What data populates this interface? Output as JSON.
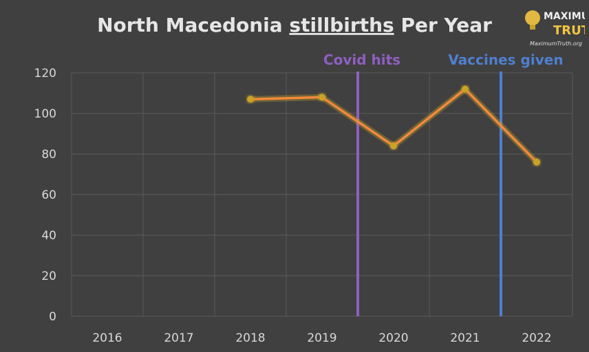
{
  "chart_data": {
    "type": "line",
    "title_parts": [
      "North Macedonia ",
      "stillbirths",
      " Per Year"
    ],
    "categories": [
      "2016",
      "2017",
      "2018",
      "2019",
      "2020",
      "2021",
      "2022"
    ],
    "series": [
      {
        "values": [
          null,
          null,
          107,
          108,
          84,
          112,
          76
        ]
      }
    ],
    "ylim": [
      0,
      120
    ],
    "yticks": [
      0,
      20,
      40,
      60,
      80,
      100,
      120
    ],
    "grid": true,
    "line_color": "#f28a3c",
    "marker_color": "#c9a227",
    "annotations": [
      {
        "label": "Covid hits",
        "x": 2019.5,
        "color": "#8e5fc1"
      },
      {
        "label": "Vaccines given",
        "x": 2021.5,
        "color": "#4f7fd0"
      }
    ]
  },
  "logo": {
    "line1": "MAXIMUM",
    "line2": "TRUTH",
    "url": "MaximumTruth.org"
  }
}
